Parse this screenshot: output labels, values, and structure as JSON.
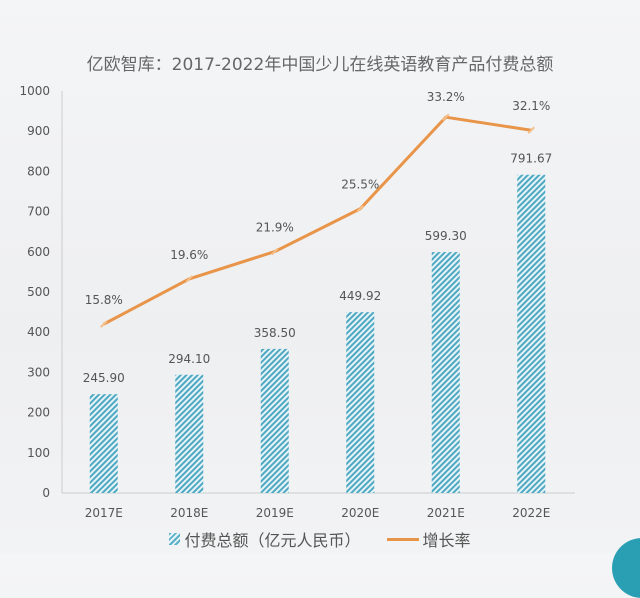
{
  "title": "亿欧智库：2017-2022年中国少儿在线英语教育产品付费总额",
  "chart_data": {
    "type": "bar+line",
    "title": "亿欧智库：2017-2022年中国少儿在线英语教育产品付费总额",
    "categories": [
      "2017E",
      "2018E",
      "2019E",
      "2020E",
      "2021E",
      "2022E"
    ],
    "series": [
      {
        "name": "付费总额（亿元人民币）",
        "type": "bar",
        "axis": "left",
        "color": "#5ab0c8",
        "values": [
          245.9,
          294.1,
          358.5,
          449.92,
          599.3,
          791.67
        ],
        "labels": [
          "245.90",
          "294.10",
          "358.50",
          "449.92",
          "599.30",
          "791.67"
        ]
      },
      {
        "name": "增长率",
        "type": "line",
        "axis": "right-hidden",
        "color": "#e8954a",
        "values": [
          15.8,
          19.6,
          21.9,
          25.5,
          33.2,
          32.1
        ],
        "labels": [
          "15.8%",
          "19.6%",
          "21.9%",
          "25.5%",
          "33.2%",
          "32.1%"
        ]
      }
    ],
    "ylim": [
      0,
      1000
    ],
    "yticks": [
      "0",
      "100",
      "200",
      "300",
      "400",
      "500",
      "600",
      "700",
      "800",
      "900",
      "1000"
    ],
    "y2lim": [
      1.6,
      35.4
    ],
    "grid": false,
    "legend": "bottom"
  },
  "legend": {
    "bar_label": "付费总额（亿元人民币）",
    "line_label": "增长率"
  }
}
